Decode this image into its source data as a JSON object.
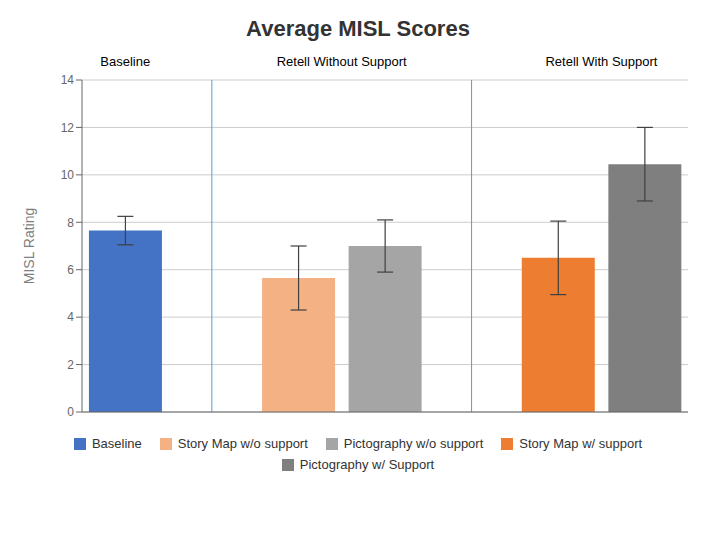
{
  "chart_data": {
    "type": "bar",
    "title": "Average MISL Scores",
    "ylabel": "MISL Rating",
    "categories": [
      "Baseline",
      "Story Map w/o support",
      "Pictography w/o support",
      "Story Map w/ support",
      "Pictography w/ Support"
    ],
    "values": [
      7.65,
      5.65,
      7.0,
      6.5,
      10.45
    ],
    "errors": [
      0.6,
      1.35,
      1.1,
      1.55,
      1.55
    ],
    "colors": [
      "#4472C4",
      "#F4B183",
      "#A5A5A5",
      "#ED7D31",
      "#7F7F7F"
    ],
    "ylim": [
      0,
      14
    ],
    "yticks": [
      0,
      2,
      4,
      6,
      8,
      10,
      12,
      14
    ],
    "grid": true,
    "legend": "bottom",
    "tick_labels": "y",
    "annotations": [
      "Baseline",
      "Retell Without Support",
      "Retell With Support"
    ]
  }
}
